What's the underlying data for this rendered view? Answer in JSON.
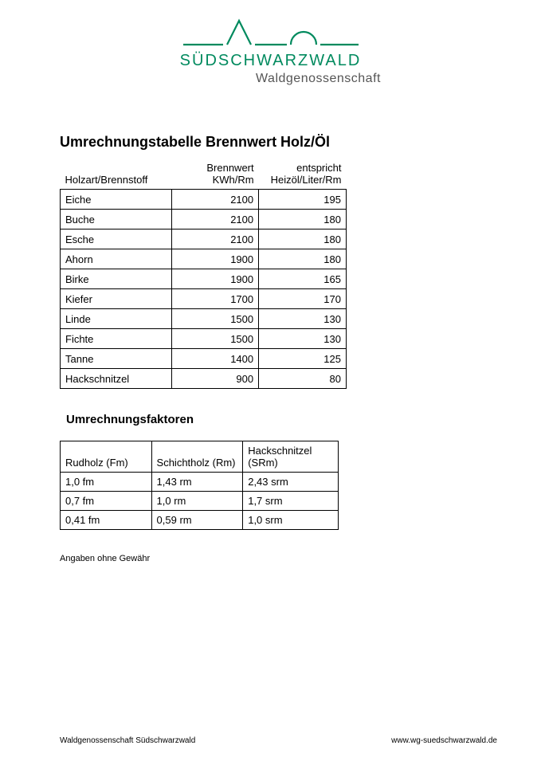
{
  "logo": {
    "line1": "SÜDSCHWARZWALD",
    "line2": "Waldgenossenschaft",
    "accent_color": "#008a5e"
  },
  "title": "Umrechnungstabelle Brennwert Holz/Öl",
  "table1": {
    "headers": {
      "col1": "Holzart/Brennstoff",
      "col2_top": "Brennwert",
      "col2_bot": "KWh/Rm",
      "col3_top": "entspricht",
      "col3_bot": "Heizöl/Liter/Rm"
    },
    "rows": [
      {
        "name": "Eiche",
        "kwh": "2100",
        "oil": "195"
      },
      {
        "name": "Buche",
        "kwh": "2100",
        "oil": "180"
      },
      {
        "name": "Esche",
        "kwh": "2100",
        "oil": "180"
      },
      {
        "name": "Ahorn",
        "kwh": "1900",
        "oil": "180"
      },
      {
        "name": "Birke",
        "kwh": "1900",
        "oil": "165"
      },
      {
        "name": "Kiefer",
        "kwh": "1700",
        "oil": "170"
      },
      {
        "name": "Linde",
        "kwh": "1500",
        "oil": "130"
      },
      {
        "name": "Fichte",
        "kwh": "1500",
        "oil": "130"
      },
      {
        "name": "Tanne",
        "kwh": "1400",
        "oil": "125"
      },
      {
        "name": "Hackschnitzel",
        "kwh": "900",
        "oil": "80"
      }
    ]
  },
  "subtitle": "Umrechnungsfaktoren",
  "table2": {
    "headers": {
      "c1": "Rudholz (Fm)",
      "c2": "Schichtholz (Rm)",
      "c3_top": "Hackschnitzel",
      "c3_bot": "(SRm)"
    },
    "rows": [
      {
        "fm": "1,0 fm",
        "rm": "1,43 rm",
        "srm": "2,43 srm"
      },
      {
        "fm": "0,7 fm",
        "rm": "1,0 rm",
        "srm": "1,7 srm"
      },
      {
        "fm": "0,41 fm",
        "rm": "0,59 rm",
        "srm": "1,0 srm"
      }
    ]
  },
  "disclaimer": "Angaben ohne Gewähr",
  "footer": {
    "left": "Waldgenossenschaft Südschwarzwald",
    "right": "www.wg-suedschwarzwald.de"
  }
}
